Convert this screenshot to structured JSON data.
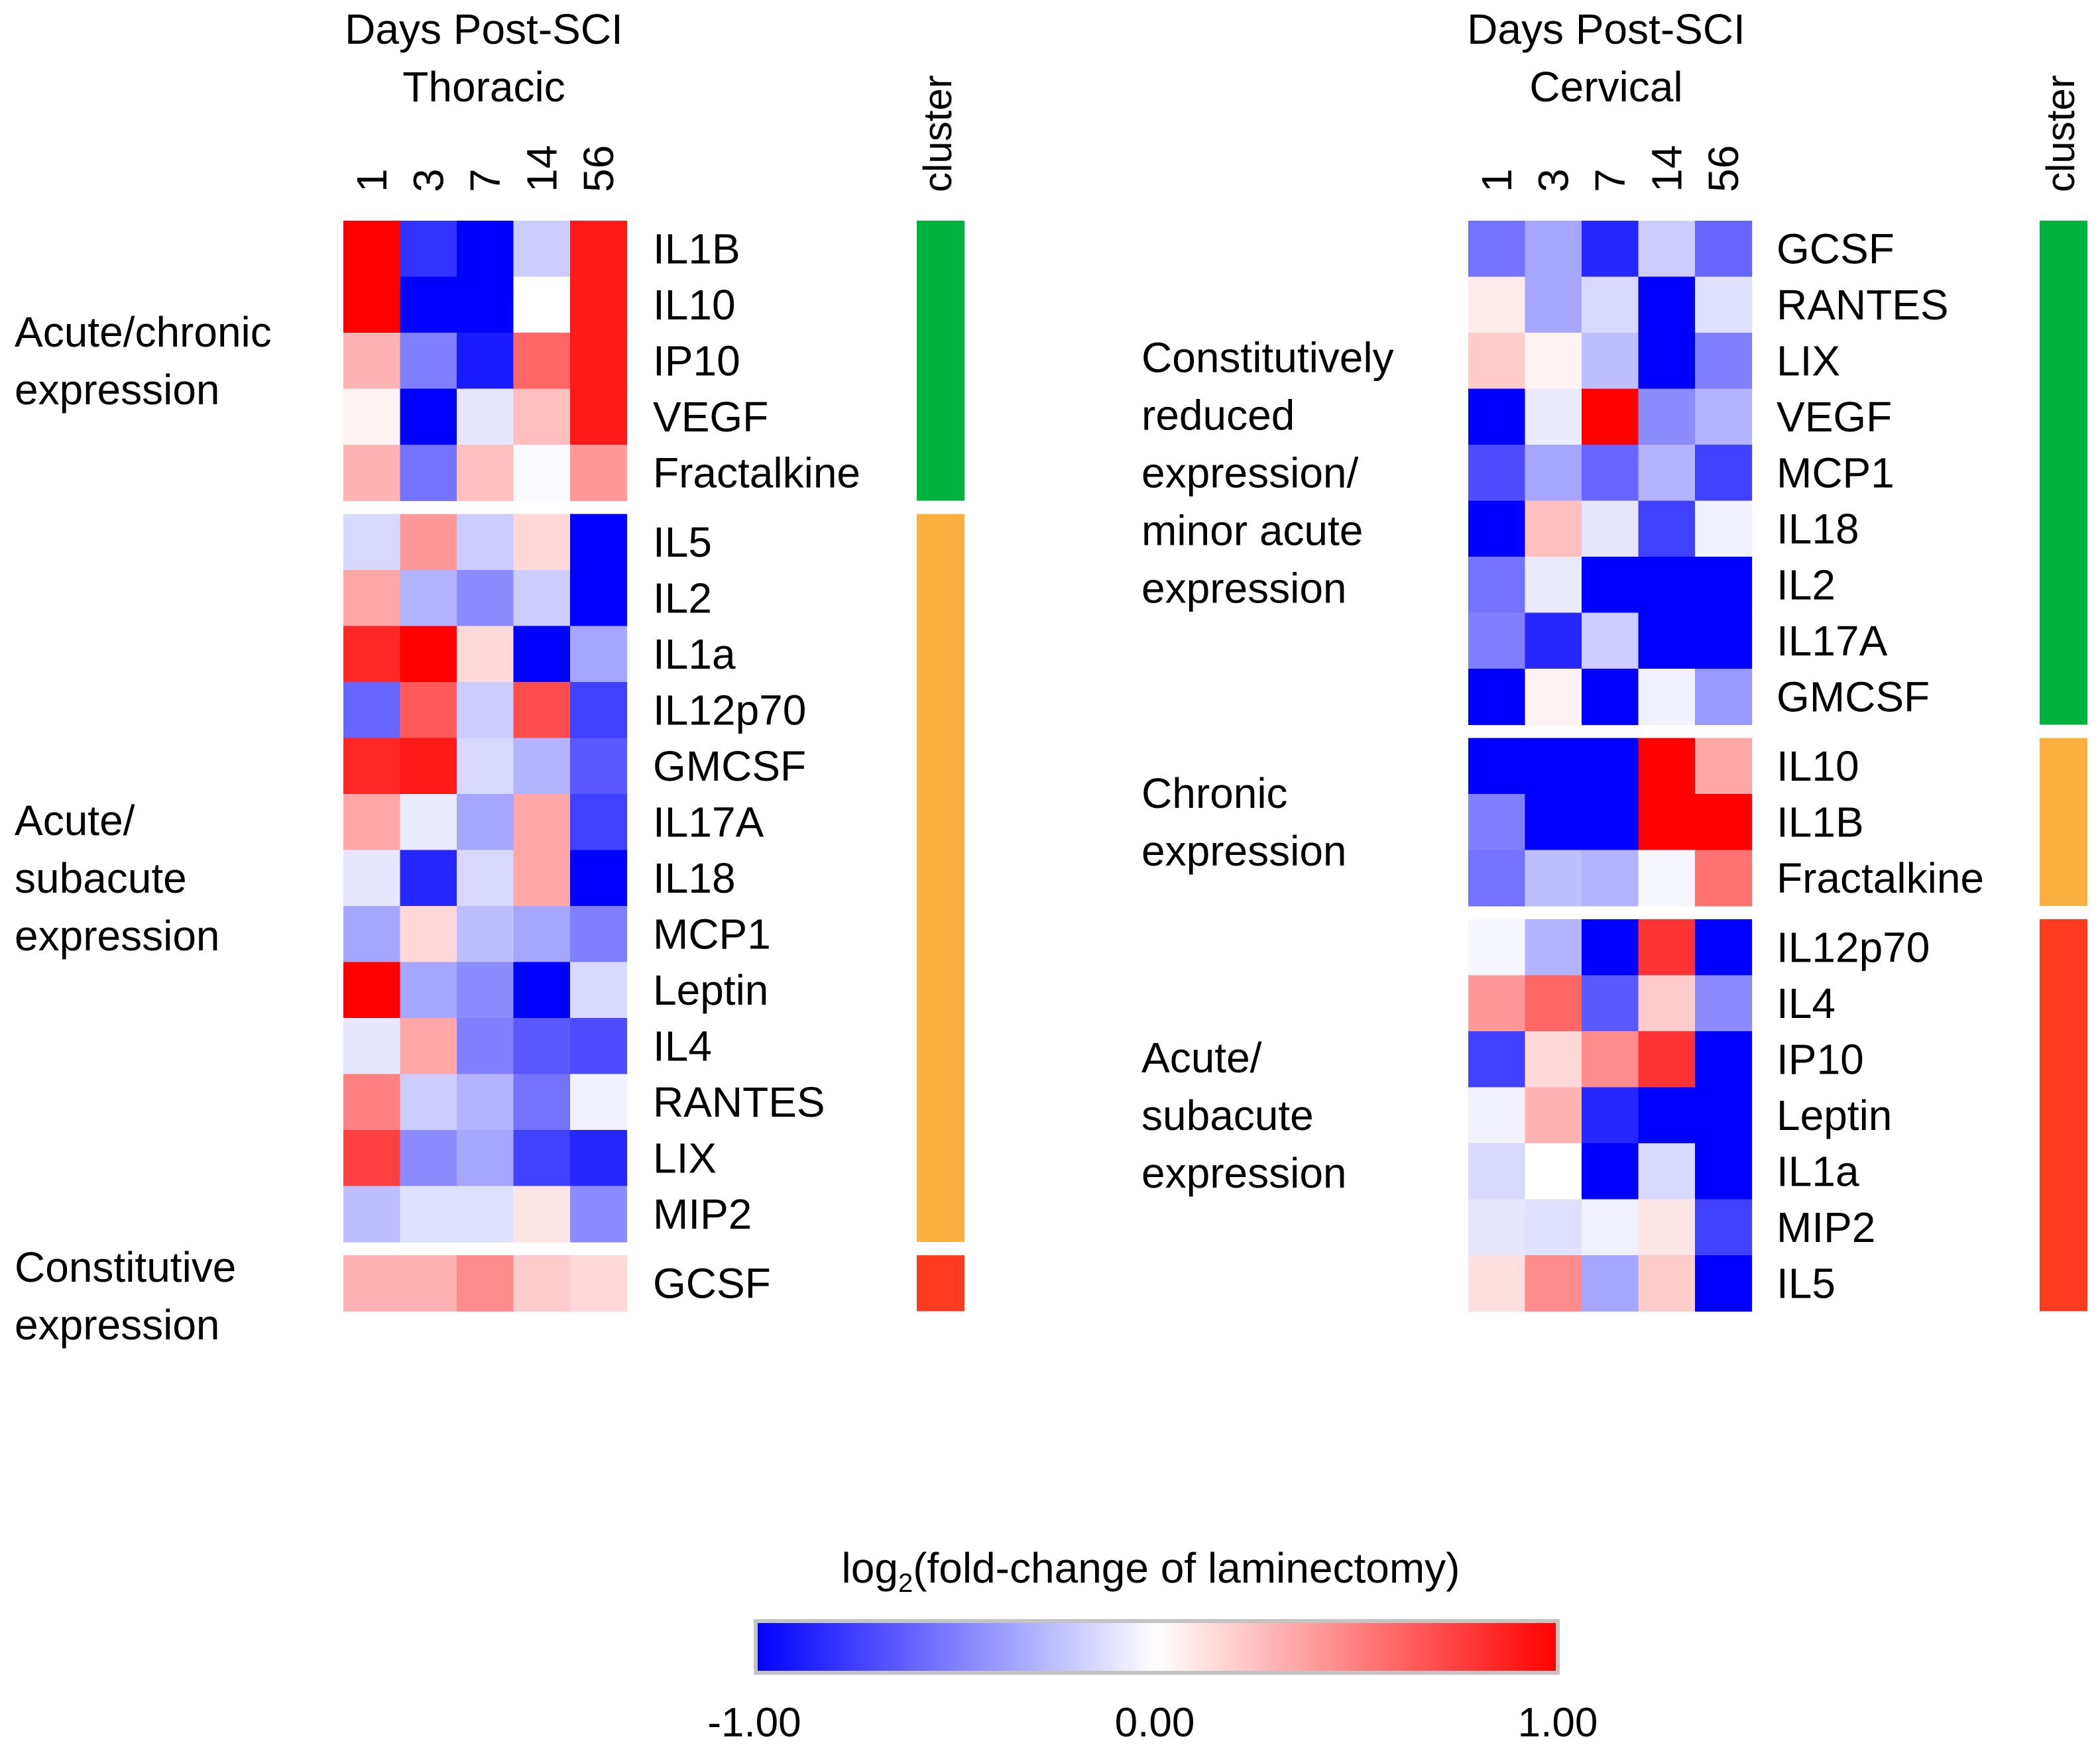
{
  "chart_data": [
    {
      "type": "heatmap",
      "panel": "thoracic",
      "title_line1": "Days Post-SCI",
      "title_line2": "Thoracic",
      "xlabel": "Days Post-SCI",
      "columns": [
        "1",
        "3",
        "7",
        "14",
        "56"
      ],
      "cluster_label": "cluster",
      "value_range": [
        -1,
        1
      ],
      "clusters": [
        {
          "label_lines": [
            "Acute/chronic",
            "expression"
          ],
          "color": "#00b33c",
          "rows": [
            {
              "name": "IL1B",
              "values": [
                1.0,
                -0.8,
                -1.0,
                -0.2,
                0.9
              ]
            },
            {
              "name": "IL10",
              "values": [
                1.0,
                -1.0,
                -1.0,
                0.0,
                0.9
              ]
            },
            {
              "name": "IP10",
              "values": [
                0.3,
                -0.5,
                -0.9,
                0.6,
                0.9
              ]
            },
            {
              "name": "VEGF",
              "values": [
                0.05,
                -1.0,
                -0.1,
                0.25,
                0.9
              ]
            },
            {
              "name": "Fractalkine",
              "values": [
                0.3,
                -0.55,
                0.25,
                -0.02,
                0.4
              ]
            }
          ]
        },
        {
          "label_lines": [
            "Acute/",
            "subacute",
            "expression"
          ],
          "color": "#fbb040",
          "rows": [
            {
              "name": "IL5",
              "values": [
                -0.15,
                0.4,
                -0.2,
                0.15,
                -1.0
              ]
            },
            {
              "name": "IL2",
              "values": [
                0.35,
                -0.3,
                -0.45,
                -0.2,
                -1.0
              ]
            },
            {
              "name": "IL1a",
              "values": [
                0.85,
                1.0,
                0.15,
                -1.0,
                -0.35
              ]
            },
            {
              "name": "IL12p70",
              "values": [
                -0.6,
                0.65,
                -0.2,
                0.7,
                -0.75
              ]
            },
            {
              "name": "GMCSF",
              "values": [
                0.85,
                0.9,
                -0.15,
                -0.3,
                -0.65
              ]
            },
            {
              "name": "IL17A",
              "values": [
                0.35,
                -0.08,
                -0.35,
                0.35,
                -0.75
              ]
            },
            {
              "name": "IL18",
              "values": [
                -0.1,
                -0.85,
                -0.15,
                0.35,
                -1.0
              ]
            },
            {
              "name": "MCP1",
              "values": [
                -0.35,
                0.15,
                -0.25,
                -0.35,
                -0.5
              ]
            },
            {
              "name": "Leptin",
              "values": [
                1.0,
                -0.35,
                -0.45,
                -1.0,
                -0.15
              ]
            },
            {
              "name": "IL4",
              "values": [
                -0.1,
                0.35,
                -0.5,
                -0.65,
                -0.7
              ]
            },
            {
              "name": "RANTES",
              "values": [
                0.5,
                -0.2,
                -0.3,
                -0.55,
                -0.05
              ]
            },
            {
              "name": "LIX",
              "values": [
                0.75,
                -0.45,
                -0.35,
                -0.75,
                -0.85
              ]
            },
            {
              "name": "MIP2",
              "values": [
                -0.25,
                -0.12,
                -0.12,
                0.1,
                -0.45
              ]
            }
          ]
        },
        {
          "label_lines": [
            "Constitutive",
            "expression"
          ],
          "color": "#ff3b1f",
          "rows": [
            {
              "name": "GCSF",
              "values": [
                0.3,
                0.3,
                0.45,
                0.2,
                0.15
              ]
            }
          ]
        }
      ]
    },
    {
      "type": "heatmap",
      "panel": "cervical",
      "title_line1": "Days Post-SCI",
      "title_line2": "Cervical",
      "xlabel": "Days Post-SCI",
      "columns": [
        "1",
        "3",
        "7",
        "14",
        "56"
      ],
      "cluster_label": "cluster",
      "value_range": [
        -1,
        1
      ],
      "clusters": [
        {
          "label_lines": [
            "Constitutively",
            "reduced",
            "expression/",
            "minor acute",
            "expression"
          ],
          "color": "#00b33c",
          "rows": [
            {
              "name": "GCSF",
              "values": [
                -0.55,
                -0.35,
                -0.85,
                -0.2,
                -0.6
              ]
            },
            {
              "name": "RANTES",
              "values": [
                0.08,
                -0.35,
                -0.15,
                -1.0,
                -0.12
              ]
            },
            {
              "name": "LIX",
              "values": [
                0.2,
                0.05,
                -0.25,
                -1.0,
                -0.5
              ]
            },
            {
              "name": "VEGF",
              "values": [
                -1.0,
                -0.08,
                1.0,
                -0.45,
                -0.3
              ]
            },
            {
              "name": "MCP1",
              "values": [
                -0.7,
                -0.35,
                -0.6,
                -0.3,
                -0.75
              ]
            },
            {
              "name": "IL18",
              "values": [
                -1.0,
                0.25,
                -0.1,
                -0.75,
                -0.05
              ]
            },
            {
              "name": "IL2",
              "values": [
                -0.55,
                -0.08,
                -1.0,
                -1.0,
                -1.0
              ]
            },
            {
              "name": "IL17A",
              "values": [
                -0.5,
                -0.85,
                -0.2,
                -1.0,
                -1.0
              ]
            },
            {
              "name": "GMCSF",
              "values": [
                -1.0,
                0.05,
                -1.0,
                -0.05,
                -0.4
              ]
            }
          ]
        },
        {
          "label_lines": [
            "Chronic",
            "expression"
          ],
          "color": "#fbb040",
          "rows": [
            {
              "name": "IL10",
              "values": [
                -1.0,
                -1.0,
                -1.0,
                1.0,
                0.35
              ]
            },
            {
              "name": "IL1B",
              "values": [
                -0.5,
                -1.0,
                -1.0,
                1.0,
                1.0
              ]
            },
            {
              "name": "Fractalkine",
              "values": [
                -0.55,
                -0.25,
                -0.3,
                -0.03,
                0.55
              ]
            }
          ]
        },
        {
          "label_lines": [
            "Acute/",
            "subacute",
            "expression"
          ],
          "color": "#ff3b1f",
          "rows": [
            {
              "name": "IL12p70",
              "values": [
                -0.03,
                -0.3,
                -1.0,
                0.8,
                -1.0
              ]
            },
            {
              "name": "IL4",
              "values": [
                0.4,
                0.6,
                -0.65,
                0.2,
                -0.45
              ]
            },
            {
              "name": "IP10",
              "values": [
                -0.75,
                0.15,
                0.45,
                0.8,
                -1.0
              ]
            },
            {
              "name": "Leptin",
              "values": [
                -0.05,
                0.3,
                -0.85,
                -1.0,
                -1.0
              ]
            },
            {
              "name": "IL1a",
              "values": [
                -0.15,
                0.0,
                -1.0,
                -0.15,
                -1.0
              ]
            },
            {
              "name": "MIP2",
              "values": [
                -0.1,
                -0.12,
                -0.06,
                0.1,
                -0.75
              ]
            },
            {
              "name": "IL5",
              "values": [
                0.12,
                0.45,
                -0.35,
                0.2,
                -1.0
              ]
            }
          ]
        }
      ]
    }
  ],
  "legend": {
    "title_prefix": "log",
    "title_subscript": "2",
    "title_suffix": "(fold-change of laminectomy)",
    "tick_labels": [
      "-1.00",
      "0.00",
      "1.00"
    ],
    "low_color": "#0000ff",
    "mid_color": "#ffffff",
    "high_color": "#ff0000"
  }
}
